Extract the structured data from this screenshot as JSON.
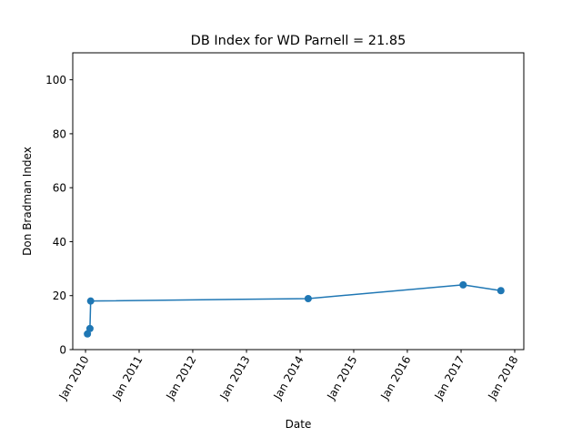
{
  "chart_data": {
    "type": "line",
    "title": "DB Index for WD Parnell = 21.85",
    "xlabel": "Date",
    "ylabel": "Don Bradman Index",
    "xlim": [
      "2009-10-06",
      "2018-03-04"
    ],
    "ylim": [
      0,
      110
    ],
    "x_ticks": [
      {
        "date": "2010-01-01",
        "label": "Jan 2010"
      },
      {
        "date": "2011-01-01",
        "label": "Jan 2011"
      },
      {
        "date": "2012-01-01",
        "label": "Jan 2012"
      },
      {
        "date": "2013-01-01",
        "label": "Jan 2013"
      },
      {
        "date": "2014-01-01",
        "label": "Jan 2014"
      },
      {
        "date": "2015-01-01",
        "label": "Jan 2015"
      },
      {
        "date": "2016-01-01",
        "label": "Jan 2016"
      },
      {
        "date": "2017-01-01",
        "label": "Jan 2017"
      },
      {
        "date": "2018-01-01",
        "label": "Jan 2018"
      }
    ],
    "y_ticks": [
      0,
      20,
      40,
      60,
      80,
      100
    ],
    "grid": false,
    "series": [
      {
        "color": "#1f77b4",
        "points": [
          {
            "x": "2010-01-14",
            "y": 5.8
          },
          {
            "x": "2010-01-31",
            "y": 7.8
          },
          {
            "x": "2010-02-05",
            "y": 18.0
          },
          {
            "x": "2014-02-25",
            "y": 18.9
          },
          {
            "x": "2017-01-15",
            "y": 24.0
          },
          {
            "x": "2017-09-29",
            "y": 21.85
          }
        ]
      }
    ]
  }
}
